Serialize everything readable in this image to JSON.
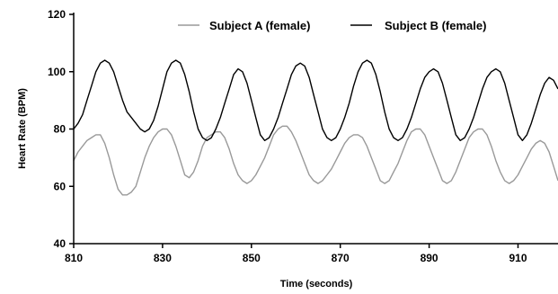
{
  "chart_data": {
    "type": "line",
    "xlabel": "Time (seconds)",
    "ylabel": "Heart Rate (BPM)",
    "xlim": [
      810,
      919
    ],
    "ylim": [
      40,
      120
    ],
    "xticks": [
      810,
      830,
      850,
      870,
      890,
      910
    ],
    "yticks": [
      40,
      60,
      80,
      100,
      120
    ],
    "grid": false,
    "legend_position": "top",
    "x": [
      810,
      811,
      812,
      813,
      814,
      815,
      816,
      817,
      818,
      819,
      820,
      821,
      822,
      823,
      824,
      825,
      826,
      827,
      828,
      829,
      830,
      831,
      832,
      833,
      834,
      835,
      836,
      837,
      838,
      839,
      840,
      841,
      842,
      843,
      844,
      845,
      846,
      847,
      848,
      849,
      850,
      851,
      852,
      853,
      854,
      855,
      856,
      857,
      858,
      859,
      860,
      861,
      862,
      863,
      864,
      865,
      866,
      867,
      868,
      869,
      870,
      871,
      872,
      873,
      874,
      875,
      876,
      877,
      878,
      879,
      880,
      881,
      882,
      883,
      884,
      885,
      886,
      887,
      888,
      889,
      890,
      891,
      892,
      893,
      894,
      895,
      896,
      897,
      898,
      899,
      900,
      901,
      902,
      903,
      904,
      905,
      906,
      907,
      908,
      909,
      910,
      911,
      912,
      913,
      914,
      915,
      916,
      917,
      918,
      919
    ],
    "series": [
      {
        "name": "Subject A (female)",
        "color": "#999999",
        "values": [
          69,
          72,
          74,
          76,
          77,
          78,
          78,
          75,
          70,
          64,
          59,
          57,
          57,
          58,
          60,
          65,
          70,
          74,
          77,
          79,
          80,
          80,
          78,
          74,
          69,
          64,
          63,
          65,
          69,
          74,
          77,
          78,
          79,
          79,
          77,
          73,
          68,
          64,
          62,
          61,
          62,
          64,
          67,
          70,
          74,
          78,
          80,
          81,
          81,
          79,
          76,
          72,
          68,
          64,
          62,
          61,
          62,
          64,
          66,
          69,
          72,
          75,
          77,
          78,
          78,
          77,
          74,
          70,
          66,
          62,
          61,
          62,
          65,
          68,
          72,
          76,
          79,
          80,
          80,
          78,
          74,
          70,
          66,
          62,
          61,
          62,
          65,
          69,
          73,
          77,
          79,
          80,
          80,
          78,
          74,
          69,
          65,
          62,
          61,
          62,
          64,
          67,
          70,
          73,
          75,
          76,
          75,
          72,
          67,
          62
        ]
      },
      {
        "name": "Subject B (female)",
        "color": "#000000",
        "values": [
          80,
          82,
          85,
          90,
          95,
          100,
          103,
          104,
          103,
          100,
          95,
          90,
          86,
          84,
          82,
          80,
          79,
          80,
          83,
          88,
          94,
          100,
          103,
          104,
          103,
          99,
          93,
          86,
          80,
          77,
          76,
          77,
          80,
          84,
          89,
          94,
          99,
          101,
          100,
          96,
          90,
          84,
          78,
          76,
          77,
          80,
          84,
          89,
          94,
          99,
          102,
          103,
          102,
          98,
          92,
          86,
          80,
          77,
          76,
          77,
          80,
          84,
          89,
          95,
          100,
          103,
          104,
          103,
          99,
          93,
          86,
          80,
          77,
          76,
          77,
          80,
          84,
          89,
          94,
          98,
          100,
          101,
          100,
          96,
          90,
          84,
          78,
          76,
          77,
          80,
          84,
          89,
          94,
          98,
          100,
          101,
          100,
          96,
          90,
          84,
          78,
          76,
          78,
          82,
          87,
          92,
          96,
          98,
          97,
          94
        ]
      }
    ]
  }
}
